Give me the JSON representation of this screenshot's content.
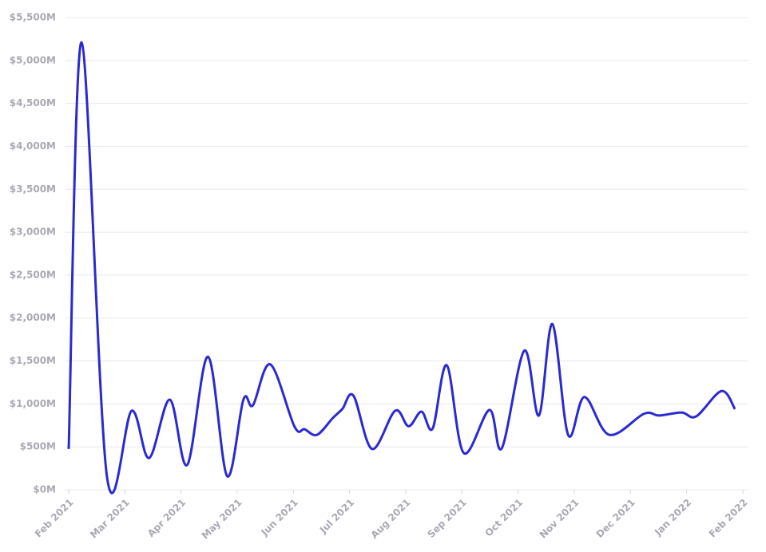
{
  "chart_data": {
    "type": "line",
    "x": [
      0,
      0.23,
      0.68,
      1.12,
      1.43,
      1.8,
      2.11,
      2.48,
      2.82,
      3.11,
      3.28,
      3.59,
      4.02,
      4.2,
      4.42,
      4.7,
      4.87,
      5.07,
      5.4,
      5.81,
      6.05,
      6.28,
      6.48,
      6.73,
      7.03,
      7.49,
      7.71,
      8.11,
      8.37,
      8.61,
      8.89,
      9.18,
      9.62,
      10.24,
      10.51,
      10.91,
      11.17,
      11.62,
      11.86
    ],
    "values": [
      475,
      5210,
      160,
      920,
      370,
      1050,
      290,
      1550,
      160,
      1050,
      985,
      1460,
      735,
      705,
      640,
      835,
      940,
      1095,
      475,
      920,
      740,
      910,
      715,
      1450,
      430,
      930,
      485,
      1620,
      865,
      1930,
      640,
      1080,
      640,
      885,
      865,
      900,
      855,
      1150,
      940
    ],
    "color": "#2a2ad2",
    "xlim": [
      0,
      12
    ],
    "xticks": [
      {
        "value": 0,
        "label": "Feb 2021"
      },
      {
        "value": 1,
        "label": "Mar 2021"
      },
      {
        "value": 2,
        "label": "Apr 2021"
      },
      {
        "value": 3,
        "label": "May 2021"
      },
      {
        "value": 4,
        "label": "Jun 2021"
      },
      {
        "value": 5,
        "label": "Jul 2021"
      },
      {
        "value": 6,
        "label": "Aug 2021"
      },
      {
        "value": 7,
        "label": "Sep 2021"
      },
      {
        "value": 8,
        "label": "Oct 2021"
      },
      {
        "value": 9,
        "label": "Nov 2021"
      },
      {
        "value": 10,
        "label": "Dec 2021"
      },
      {
        "value": 11,
        "label": "Jan 2022"
      },
      {
        "value": 12,
        "label": "Feb 2022"
      }
    ],
    "ylim": [
      0,
      5500
    ],
    "yticks": [
      {
        "value": 0,
        "label": "$0M"
      },
      {
        "value": 500,
        "label": "$500M"
      },
      {
        "value": 1000,
        "label": "$1,000M"
      },
      {
        "value": 1500,
        "label": "$1,500M"
      },
      {
        "value": 2000,
        "label": "$2,000M"
      },
      {
        "value": 2500,
        "label": "$2,500M"
      },
      {
        "value": 3000,
        "label": "$3,000M"
      },
      {
        "value": 3500,
        "label": "$3,500M"
      },
      {
        "value": 4000,
        "label": "$4,000M"
      },
      {
        "value": 4500,
        "label": "$4,500M"
      },
      {
        "value": 5000,
        "label": "$5,000M"
      },
      {
        "value": 5500,
        "label": "$5,500M"
      }
    ],
    "grid": true
  }
}
